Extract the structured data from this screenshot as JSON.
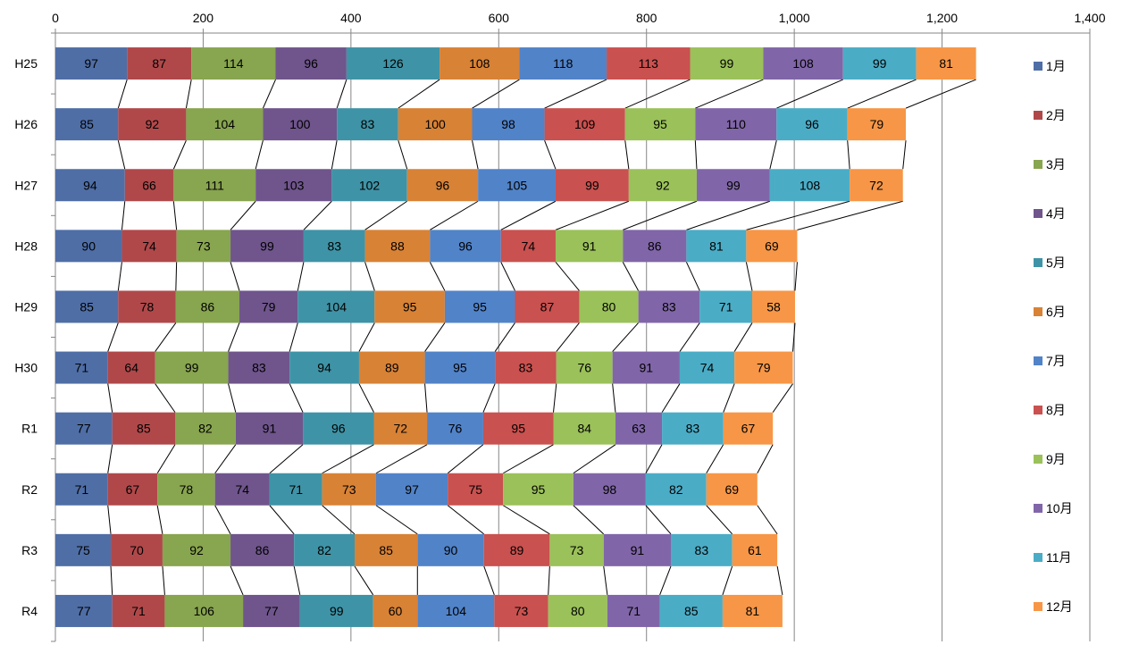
{
  "chart_data": {
    "type": "bar",
    "orientation": "horizontal",
    "stacked": true,
    "series_lines": true,
    "categories": [
      "H25",
      "H26",
      "H27",
      "H28",
      "H29",
      "H30",
      "R1",
      "R2",
      "R3",
      "R4"
    ],
    "series": [
      {
        "name": "1月",
        "color": "#4F6EA6",
        "values": [
          97,
          85,
          94,
          90,
          85,
          71,
          77,
          71,
          75,
          77
        ]
      },
      {
        "name": "2月",
        "color": "#B0484A",
        "values": [
          87,
          92,
          66,
          74,
          78,
          64,
          85,
          67,
          70,
          71
        ]
      },
      {
        "name": "3月",
        "color": "#88A54F",
        "values": [
          114,
          104,
          111,
          73,
          86,
          99,
          82,
          78,
          92,
          106
        ]
      },
      {
        "name": "4月",
        "color": "#6F558C",
        "values": [
          96,
          100,
          103,
          99,
          79,
          83,
          91,
          74,
          86,
          77
        ]
      },
      {
        "name": "5月",
        "color": "#3F93A6",
        "values": [
          126,
          83,
          102,
          83,
          104,
          94,
          96,
          71,
          82,
          99
        ]
      },
      {
        "name": "6月",
        "color": "#D88236",
        "values": [
          108,
          100,
          96,
          88,
          95,
          89,
          72,
          73,
          85,
          60
        ]
      },
      {
        "name": "7月",
        "color": "#5183C8",
        "values": [
          118,
          98,
          105,
          96,
          95,
          95,
          76,
          97,
          90,
          104
        ]
      },
      {
        "name": "8月",
        "color": "#C9514F",
        "values": [
          113,
          109,
          99,
          74,
          87,
          83,
          95,
          75,
          89,
          73
        ]
      },
      {
        "name": "9月",
        "color": "#9BC15A",
        "values": [
          99,
          95,
          92,
          91,
          80,
          76,
          84,
          95,
          73,
          80
        ]
      },
      {
        "name": "10月",
        "color": "#8066A8",
        "values": [
          108,
          110,
          99,
          86,
          83,
          91,
          63,
          98,
          91,
          71
        ]
      },
      {
        "name": "11月",
        "color": "#4BACC6",
        "values": [
          99,
          96,
          108,
          81,
          71,
          74,
          83,
          82,
          83,
          85
        ]
      },
      {
        "name": "12月",
        "color": "#F79646",
        "values": [
          81,
          79,
          72,
          69,
          58,
          79,
          67,
          69,
          61,
          81
        ]
      }
    ],
    "x_axis": {
      "min": 0,
      "max": 1400,
      "major": 200,
      "position": "top",
      "tick_labels": [
        "0",
        "200",
        "400",
        "600",
        "800",
        "1,000",
        "1,200",
        "1,400"
      ]
    },
    "grid": true,
    "legend": "right"
  }
}
